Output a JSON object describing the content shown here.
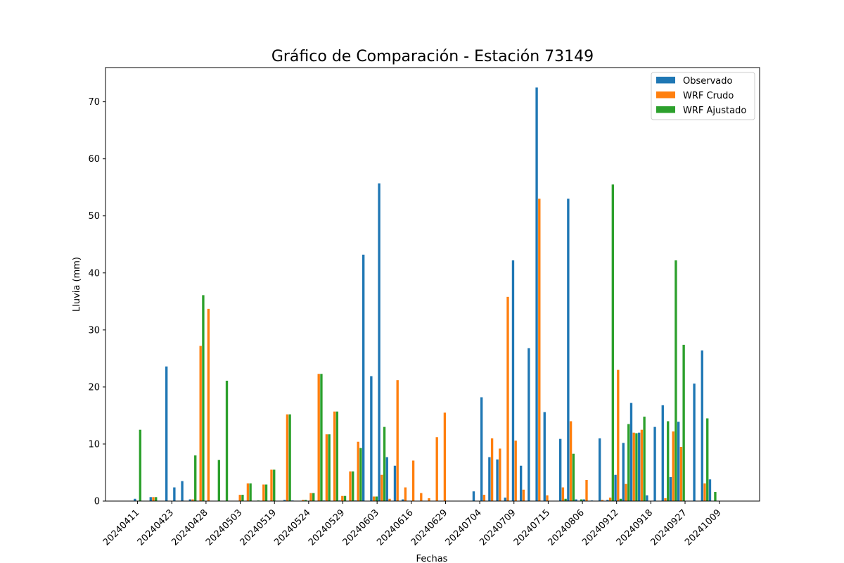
{
  "chart_data": {
    "type": "bar",
    "title": "Gráfico de Comparación - Estación 73149",
    "xlabel": "Fechas",
    "ylabel": "Lluvia (mm)",
    "ylim": [
      0,
      76
    ],
    "yticks": [
      0,
      10,
      20,
      30,
      40,
      50,
      60,
      70
    ],
    "xtick_labels": [
      "20240411",
      "20240423",
      "20240428",
      "20240503",
      "20240519",
      "20240524",
      "20240529",
      "20240603",
      "20240616",
      "20240629",
      "20240704",
      "20240709",
      "20240715",
      "20240806",
      "20240912",
      "20240918",
      "20240927",
      "20241009"
    ],
    "legend_position": "top-right",
    "grid": false,
    "series": [
      {
        "name": "Observado",
        "color": "#1f77b4",
        "values": [
          0.4,
          0,
          0.7,
          0,
          23.6,
          2.4,
          3.5,
          0.3,
          0,
          0,
          0,
          0,
          0,
          0,
          0,
          0,
          0,
          0,
          0,
          0.2,
          0.1,
          0,
          0,
          0,
          0.1,
          0,
          0.1,
          0,
          0.1,
          43.2,
          21.9,
          55.7,
          7.7,
          6.2,
          0.3,
          0,
          0,
          0,
          0,
          0,
          0,
          0,
          0,
          1.7,
          18.2,
          7.7,
          7.3,
          0.6,
          42.2,
          6.2,
          26.8,
          72.5,
          15.6,
          0,
          10.9,
          53,
          0.3,
          0.3,
          0.1,
          11,
          0.2,
          4.6,
          10.2,
          17.2,
          12,
          1,
          13,
          16.8,
          4.2,
          13.9,
          0,
          20.6,
          26.4,
          3.8
        ]
      },
      {
        "name": "WRF Crudo",
        "color": "#ff7f0e",
        "values": [
          0,
          0,
          0.7,
          0,
          0,
          0,
          0,
          0.3,
          27.2,
          33.7,
          0,
          0,
          0,
          1.1,
          3.1,
          0,
          2.9,
          5.5,
          0,
          15.2,
          0,
          0.2,
          1.4,
          22.3,
          11.7,
          15.7,
          0.9,
          5.2,
          10.4,
          0,
          0.8,
          4.6,
          0.4,
          21.2,
          2.4,
          7.1,
          1.4,
          0.5,
          11.2,
          15.5,
          0,
          0,
          0,
          0,
          1.1,
          11,
          9.2,
          35.8,
          10.6,
          2,
          0,
          53,
          1,
          0,
          2.4,
          14,
          0,
          3.7,
          0,
          0.2,
          0.6,
          23,
          3,
          12,
          12.5,
          0,
          0,
          0.5,
          12.2,
          9.5,
          0,
          0,
          3.1,
          0
        ]
      },
      {
        "name": "WRF Ajustado",
        "color": "#2ca02c",
        "values": [
          12.5,
          0,
          0.7,
          0,
          0,
          0,
          0,
          8,
          36.1,
          0,
          7.2,
          21.1,
          0,
          1.1,
          3.1,
          0.1,
          2.9,
          5.5,
          0,
          15.2,
          0,
          0.2,
          1.4,
          22.3,
          11.7,
          15.7,
          0.9,
          5.2,
          9.3,
          0,
          0.8,
          13,
          0,
          0,
          0,
          0,
          0,
          0,
          0,
          0,
          0,
          0,
          0,
          0,
          0,
          0,
          0,
          0,
          0,
          0,
          0,
          0,
          0,
          0,
          0.4,
          8.3,
          0.3,
          0,
          0,
          0,
          55.5,
          0.4,
          13.5,
          11.9,
          14.8,
          0,
          0,
          14,
          42.2,
          27.4,
          0,
          0,
          14.5,
          1.6
        ]
      }
    ]
  }
}
